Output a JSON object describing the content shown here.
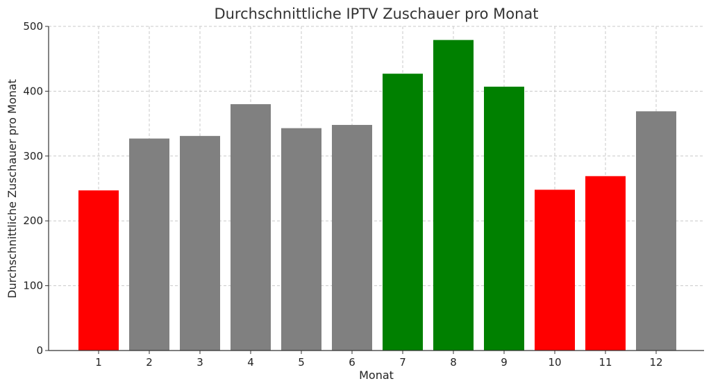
{
  "chart_data": {
    "type": "bar",
    "title": "Durchschnittliche IPTV Zuschauer pro Monat",
    "xlabel": "Monat",
    "ylabel": "Durchschnittliche Zuschauer pro Monat",
    "categories": [
      "1",
      "2",
      "3",
      "4",
      "5",
      "6",
      "7",
      "8",
      "9",
      "10",
      "11",
      "12"
    ],
    "values": [
      247,
      327,
      331,
      380,
      343,
      348,
      427,
      479,
      407,
      248,
      269,
      369
    ],
    "bar_colors": [
      "#ff0000",
      "#808080",
      "#808080",
      "#808080",
      "#808080",
      "#808080",
      "#008000",
      "#008000",
      "#008000",
      "#ff0000",
      "#ff0000",
      "#808080"
    ],
    "ylim": [
      0,
      500
    ],
    "yticks": [
      0,
      100,
      200,
      300,
      400,
      500
    ],
    "grid": true
  }
}
